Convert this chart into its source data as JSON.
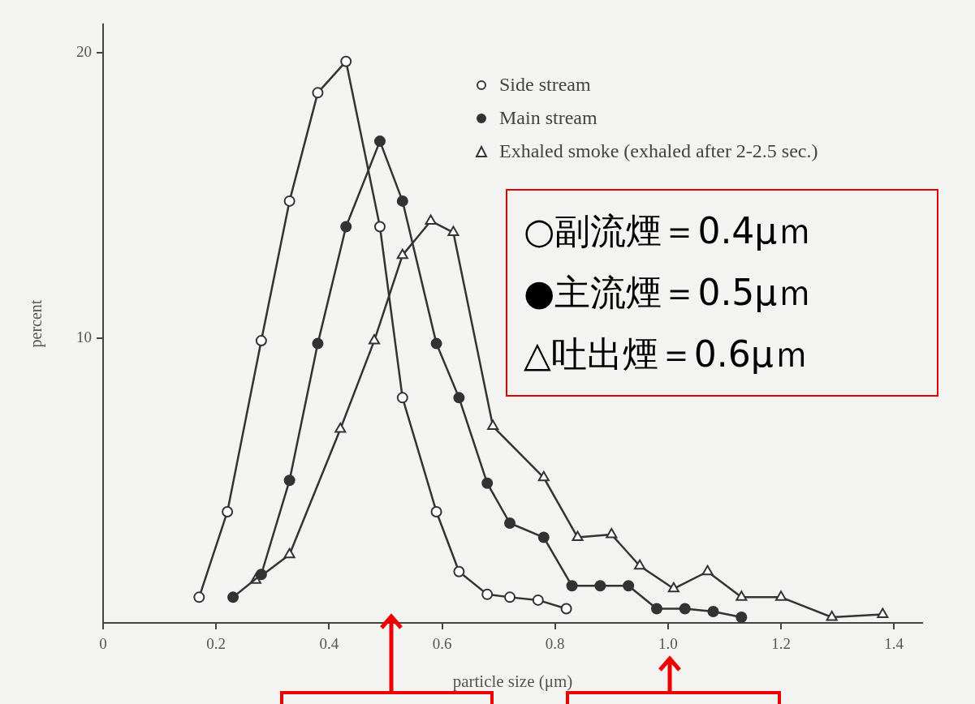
{
  "chart_data": {
    "type": "line",
    "xlabel": "particle size (μm)",
    "ylabel": "percent",
    "xlim": [
      0,
      1.45
    ],
    "xticks": [
      0,
      0.2,
      0.4,
      0.6,
      0.8,
      {
        "value": 1,
        "label": "1.0"
      },
      1.2,
      1.4
    ],
    "ylim": [
      0,
      21
    ],
    "yticks": [
      10,
      20
    ],
    "grid": false,
    "legend": "top right",
    "line_style": "solid",
    "series": [
      {
        "name": "Side stream",
        "color": "#333333",
        "marker": "circle",
        "x": [
          0.17,
          0.22,
          0.28,
          0.33,
          0.38,
          0.43,
          0.49,
          0.53,
          0.59,
          0.63,
          0.68,
          0.72,
          0.77,
          0.82
        ],
        "values": [
          0.9,
          3.9,
          9.9,
          14.8,
          18.6,
          19.7,
          13.9,
          7.9,
          3.9,
          1.8,
          1.0,
          0.9,
          0.8,
          0.5
        ]
      },
      {
        "name": "Main stream",
        "color": "#333333",
        "marker": "circle",
        "colors": [
          "#333333",
          "#333333",
          "#333333",
          "#333333",
          "#333333",
          "#333333",
          "#333333",
          "#333333",
          "#333333",
          "#333333",
          "#333333",
          "#333333",
          "#333333",
          "#333333",
          "#333333",
          "#333333",
          "#333333",
          "#333333",
          "#333333"
        ],
        "x": [
          0.23,
          0.28,
          0.33,
          0.38,
          0.43,
          0.49,
          0.53,
          0.59,
          0.63,
          0.68,
          0.72,
          0.78,
          0.83,
          0.88,
          0.93,
          0.98,
          1.03,
          1.08,
          1.13
        ],
        "values": [
          0.9,
          1.7,
          5.0,
          9.8,
          13.9,
          16.9,
          14.8,
          9.8,
          7.9,
          4.9,
          3.5,
          3.0,
          1.3,
          1.3,
          1.3,
          0.5,
          0.5,
          0.4,
          0.2
        ]
      },
      {
        "name": "Exhaled smoke (exhaled after 2-2.5 sec.)",
        "color": "#333333",
        "marker": "triangle",
        "x": [
          0.27,
          0.33,
          0.42,
          0.48,
          0.53,
          0.58,
          0.62,
          0.69,
          0.78,
          0.84,
          0.9,
          0.95,
          1.01,
          1.07,
          1.13,
          1.2,
          1.29,
          1.38
        ],
        "values": [
          1.5,
          2.4,
          6.8,
          9.9,
          12.9,
          14.1,
          13.7,
          6.9,
          5.1,
          3.0,
          3.1,
          2.0,
          1.2,
          1.8,
          0.9,
          0.9,
          0.2,
          0.3
        ]
      }
    ],
    "annotations": [
      "○副流煙＝0.4μｍ",
      "●主流煙＝0.5μｍ",
      "△吐出煙＝0.6μｍ"
    ]
  }
}
